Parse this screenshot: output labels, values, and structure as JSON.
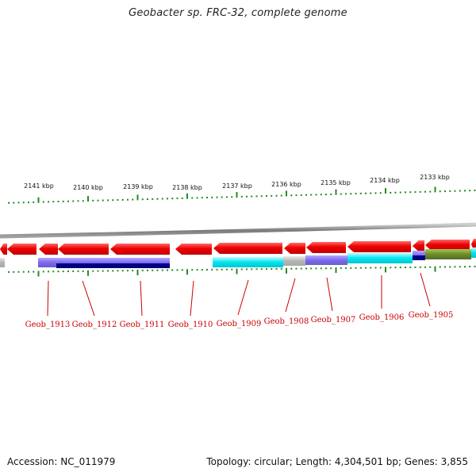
{
  "title": "Geobacter sp. FRC-32, complete genome",
  "footer": {
    "accession": "Accession: NC_011979",
    "summary": "Topology: circular; Length: 4,304,501 bp; Genes: 3,855"
  },
  "scale_labels": [
    "2141 kbp",
    "2140 kbp",
    "2139 kbp",
    "2138 kbp",
    "2137 kbp",
    "2136 kbp",
    "2135 kbp",
    "2134 kbp",
    "2133 kbp"
  ],
  "gene_labels": [
    "Geob_1913",
    "Geob_1912",
    "Geob_1911",
    "Geob_1910",
    "Geob_1909",
    "Geob_1908",
    "Geob_1907",
    "Geob_1906",
    "Geob_1905"
  ],
  "colors": {
    "backbone": "#888888",
    "cds": "#ee0000",
    "tick": "#228b22",
    "label": "#cc0000",
    "cog_slate": "#7b68ee",
    "cog_navy": "#000080",
    "cog_cyan": "#00e5ee",
    "cog_gray": "#b4b4b4",
    "cog_olive": "#6b8e23"
  }
}
